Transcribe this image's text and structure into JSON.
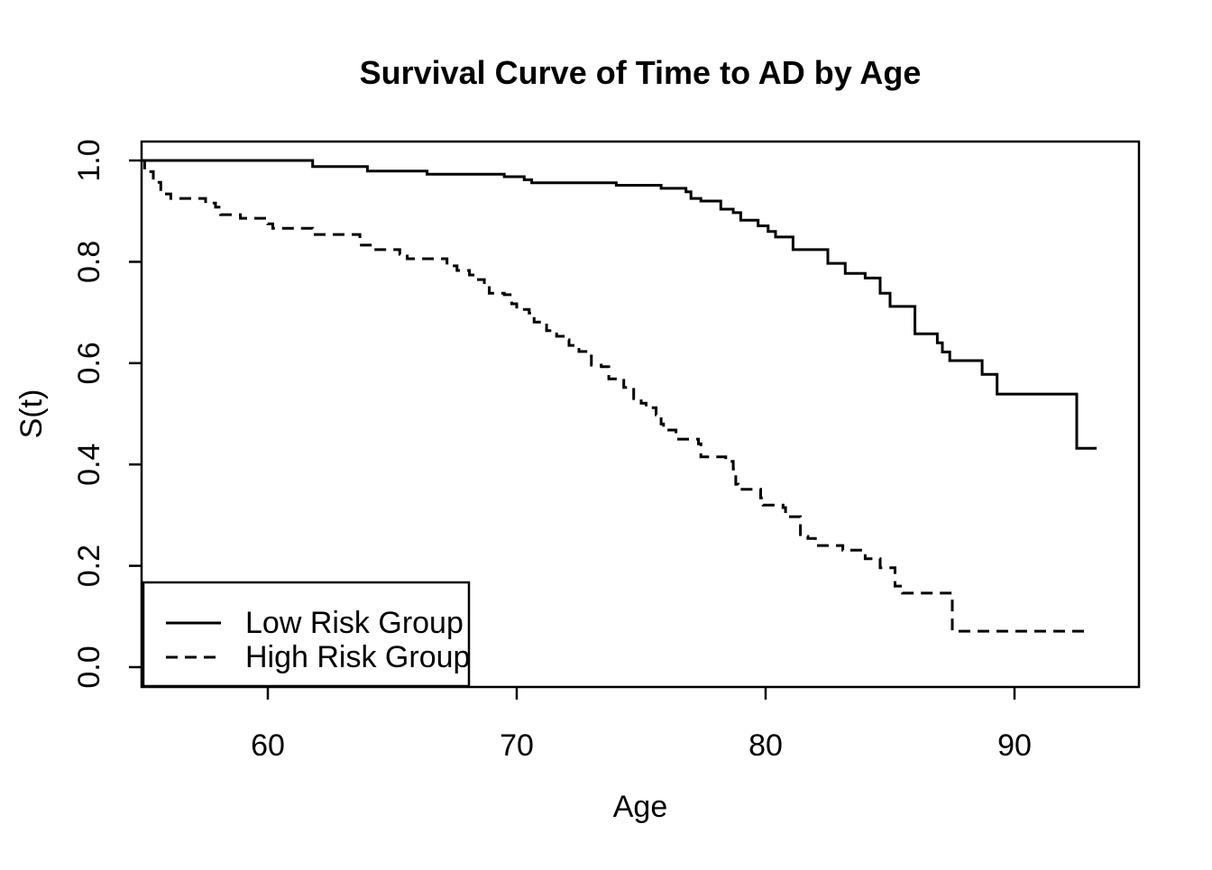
{
  "title": "Survival Curve of Time to AD by Age",
  "x_axis": {
    "label": "Age",
    "tick_labels": [
      "60",
      "70",
      "80",
      "90"
    ]
  },
  "y_axis": {
    "label": "S(t)",
    "tick_labels": [
      "0.0",
      "0.2",
      "0.4",
      "0.6",
      "0.8",
      "1.0"
    ]
  },
  "legend": {
    "items": [
      {
        "label": "Low Risk Group",
        "line_style": "solid"
      },
      {
        "label": "High Risk Group",
        "line_style": "dashed"
      }
    ]
  },
  "colors": {
    "foreground": "#000000",
    "background": "#ffffff"
  },
  "chart_data": {
    "type": "line",
    "subtype": "kaplan-meier-step",
    "title": "Survival Curve of Time to AD by Age",
    "xlabel": "Age",
    "ylabel": "S(t)",
    "xlim": [
      54.9,
      95
    ],
    "ylim": [
      0.0,
      1.0
    ],
    "x_ticks": [
      60,
      70,
      80,
      90
    ],
    "y_ticks": [
      0.0,
      0.2,
      0.4,
      0.6,
      0.8,
      1.0
    ],
    "grid": false,
    "legend_position": "bottom-left",
    "series": [
      {
        "name": "Low Risk Group",
        "line_style": "solid",
        "end_x": 93.3,
        "points": [
          [
            54.93,
            1.0
          ],
          [
            61.8,
            0.988
          ],
          [
            64.0,
            0.979
          ],
          [
            66.4,
            0.973
          ],
          [
            69.5,
            0.968
          ],
          [
            70.3,
            0.962
          ],
          [
            70.6,
            0.956
          ],
          [
            74.0,
            0.951
          ],
          [
            75.8,
            0.945
          ],
          [
            76.8,
            0.938
          ],
          [
            77.0,
            0.925
          ],
          [
            77.4,
            0.92
          ],
          [
            78.2,
            0.904
          ],
          [
            78.7,
            0.897
          ],
          [
            79.0,
            0.882
          ],
          [
            79.7,
            0.871
          ],
          [
            80.1,
            0.86
          ],
          [
            80.4,
            0.849
          ],
          [
            81.1,
            0.824
          ],
          [
            82.5,
            0.797
          ],
          [
            83.2,
            0.777
          ],
          [
            84.0,
            0.768
          ],
          [
            84.6,
            0.738
          ],
          [
            85.0,
            0.712
          ],
          [
            86.0,
            0.658
          ],
          [
            86.9,
            0.64
          ],
          [
            87.1,
            0.622
          ],
          [
            87.4,
            0.605
          ],
          [
            88.7,
            0.578
          ],
          [
            89.3,
            0.539
          ],
          [
            92.5,
            0.432
          ]
        ]
      },
      {
        "name": "High Risk Group",
        "line_style": "dashed",
        "end_x": 93.0,
        "points": [
          [
            54.93,
            1.0
          ],
          [
            55.05,
            0.978
          ],
          [
            55.4,
            0.957
          ],
          [
            55.7,
            0.934
          ],
          [
            56.1,
            0.925
          ],
          [
            57.5,
            0.916
          ],
          [
            57.9,
            0.908
          ],
          [
            58.1,
            0.893
          ],
          [
            58.9,
            0.886
          ],
          [
            60.0,
            0.875
          ],
          [
            60.2,
            0.866
          ],
          [
            61.8,
            0.854
          ],
          [
            63.7,
            0.833
          ],
          [
            64.2,
            0.824
          ],
          [
            65.3,
            0.815
          ],
          [
            65.6,
            0.806
          ],
          [
            67.2,
            0.792
          ],
          [
            67.6,
            0.783
          ],
          [
            68.1,
            0.774
          ],
          [
            68.4,
            0.765
          ],
          [
            68.7,
            0.753
          ],
          [
            68.9,
            0.738
          ],
          [
            69.5,
            0.735
          ],
          [
            69.8,
            0.717
          ],
          [
            70.0,
            0.706
          ],
          [
            70.5,
            0.699
          ],
          [
            70.7,
            0.681
          ],
          [
            71.2,
            0.664
          ],
          [
            71.6,
            0.653
          ],
          [
            72.0,
            0.646
          ],
          [
            72.1,
            0.635
          ],
          [
            72.5,
            0.623
          ],
          [
            72.9,
            0.614
          ],
          [
            73.0,
            0.596
          ],
          [
            73.4,
            0.593
          ],
          [
            73.7,
            0.569
          ],
          [
            74.3,
            0.552
          ],
          [
            74.7,
            0.53
          ],
          [
            75.0,
            0.521
          ],
          [
            75.2,
            0.512
          ],
          [
            75.6,
            0.498
          ],
          [
            75.8,
            0.48
          ],
          [
            75.9,
            0.468
          ],
          [
            76.4,
            0.45
          ],
          [
            77.3,
            0.441
          ],
          [
            77.4,
            0.415
          ],
          [
            78.4,
            0.406
          ],
          [
            78.7,
            0.391
          ],
          [
            78.8,
            0.361
          ],
          [
            78.9,
            0.351
          ],
          [
            79.8,
            0.334
          ],
          [
            79.9,
            0.32
          ],
          [
            80.7,
            0.315
          ],
          [
            80.8,
            0.297
          ],
          [
            81.4,
            0.258
          ],
          [
            81.7,
            0.254
          ],
          [
            82.0,
            0.24
          ],
          [
            83.1,
            0.231
          ],
          [
            84.0,
            0.214
          ],
          [
            84.6,
            0.196
          ],
          [
            85.2,
            0.16
          ],
          [
            85.5,
            0.146
          ],
          [
            87.5,
            0.071
          ]
        ]
      }
    ]
  }
}
